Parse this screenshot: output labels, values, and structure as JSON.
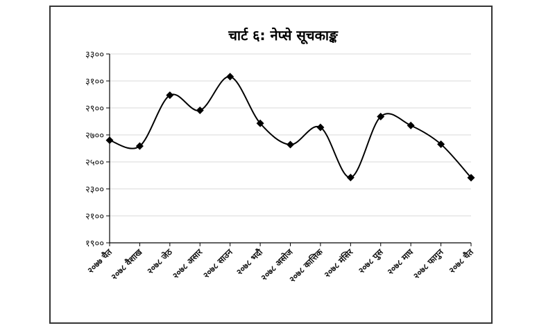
{
  "chart_data": {
    "type": "line",
    "title": "चार्ट ६: नेप्से सूचकाङ्क",
    "xlabel": "",
    "ylabel": "",
    "categories": [
      "२०७७ चैत",
      "२०७८ वैशाख",
      "२०७८ जेठ",
      "२०७८ असार",
      "२०७८ साउन",
      "२०७८ भदौ",
      "२०७८ असोज",
      "२०७८ कात्तिक",
      "२०७८ मंसिर",
      "२०७८ पुस",
      "२०७८ माघ",
      "२०७८ फागुन",
      "२०७८ चैत"
    ],
    "series": [
      {
        "values": [
          2660,
          2617,
          2994,
          2882,
          3132,
          2786,
          2628,
          2756,
          2384,
          2836,
          2770,
          2631,
          2383
        ]
      }
    ],
    "ylim": [
      1900,
      3300
    ],
    "yticks": [
      1900,
      2100,
      2300,
      2500,
      2700,
      2900,
      3100,
      3300
    ],
    "ytick_labels": [
      "१९००",
      "२१००",
      "२३००",
      "२५००",
      "२७००",
      "२९००",
      "३१००",
      "३३००"
    ],
    "grid": true,
    "legend": "none",
    "colors": {
      "line": "#000000",
      "grid": "#d9d9d9",
      "axis": "#000000",
      "border": "#333333"
    },
    "marker": "diamond",
    "smooth": true
  }
}
